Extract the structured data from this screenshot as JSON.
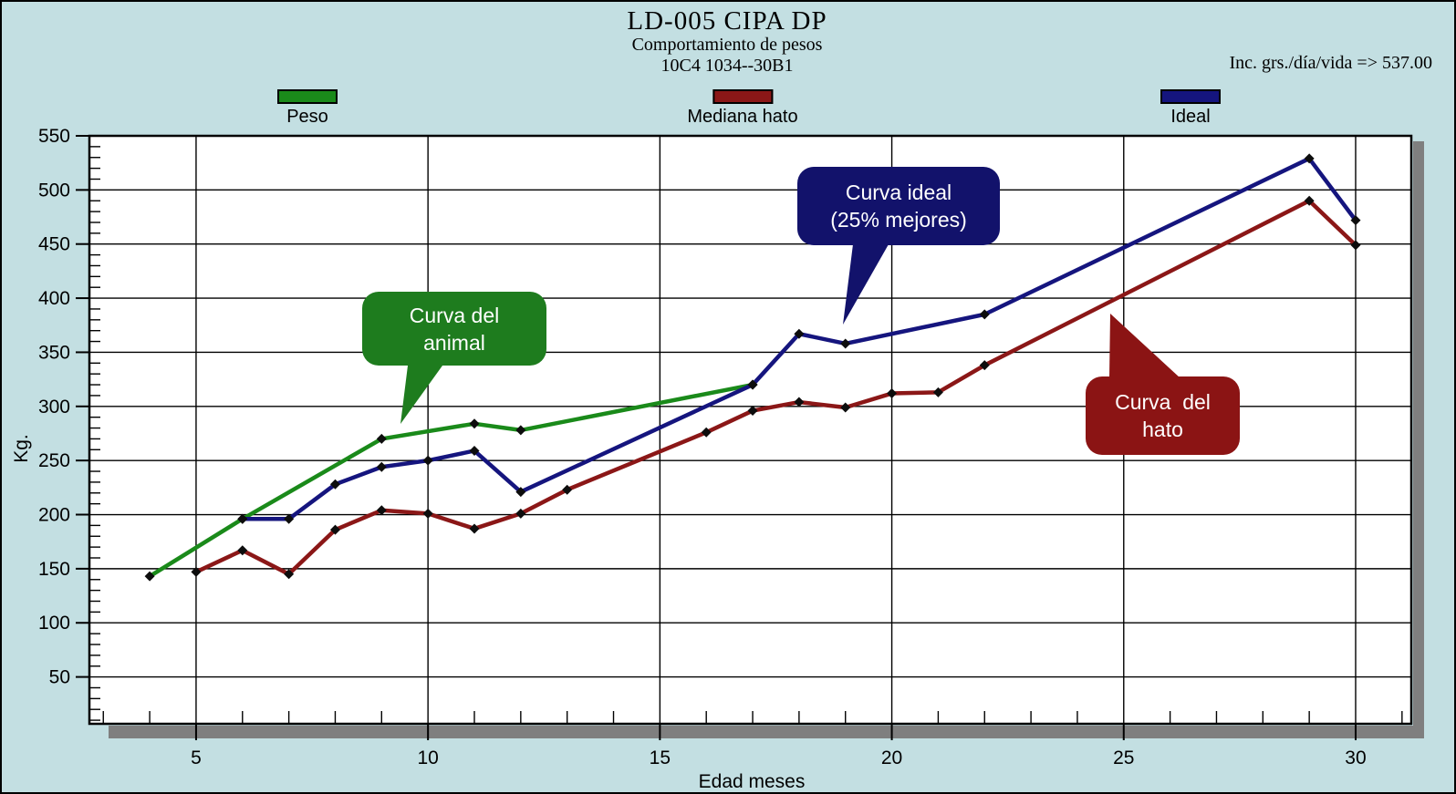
{
  "header": {
    "title": "LD-005 CIPA DP",
    "subtitle": "Comportamiento de pesos",
    "code": "10C4 1034--30B1",
    "right_note": "Inc. grs./día/vida => 537.00"
  },
  "legend": {
    "items": [
      {
        "label": "Peso",
        "color": "#1a8a1a"
      },
      {
        "label": "Mediana hato",
        "color": "#8b1717"
      },
      {
        "label": "Ideal",
        "color": "#15157e"
      }
    ]
  },
  "axes": {
    "x_label": "Edad meses",
    "y_label": "Kg.",
    "x_major_ticks": [
      5,
      10,
      15,
      20,
      25,
      30
    ],
    "y_major_ticks": [
      50,
      100,
      150,
      200,
      250,
      300,
      350,
      400,
      450,
      500,
      550
    ],
    "x_minor_step": 1,
    "y_minor_step": 10
  },
  "chart_data": {
    "type": "line",
    "title": "LD-005 CIPA DP",
    "subtitle": "Comportamiento de pesos",
    "xlabel": "Edad meses",
    "ylabel": "Kg.",
    "xlim": [
      2.7,
      31.2
    ],
    "ylim": [
      6.7,
      550
    ],
    "grid": true,
    "legend_position": "top",
    "series": [
      {
        "name": "Peso",
        "color": "#1a8a1a",
        "points": [
          [
            4,
            143
          ],
          [
            6,
            196
          ],
          [
            9,
            270
          ],
          [
            11,
            284
          ],
          [
            12,
            278
          ],
          [
            17,
            320
          ]
        ]
      },
      {
        "name": "Mediana hato",
        "color": "#8b1717",
        "points": [
          [
            5,
            147
          ],
          [
            6,
            167
          ],
          [
            7,
            145
          ],
          [
            8,
            186
          ],
          [
            9,
            204
          ],
          [
            10,
            201
          ],
          [
            11,
            187
          ],
          [
            12,
            201
          ],
          [
            13,
            223
          ],
          [
            16,
            276
          ],
          [
            17,
            296
          ],
          [
            18,
            304
          ],
          [
            19,
            299
          ],
          [
            20,
            312
          ],
          [
            21,
            313
          ],
          [
            22,
            338
          ],
          [
            29,
            490
          ],
          [
            30,
            449
          ]
        ]
      },
      {
        "name": "Ideal",
        "color": "#15157e",
        "points": [
          [
            6,
            196
          ],
          [
            7,
            196
          ],
          [
            8,
            228
          ],
          [
            9,
            244
          ],
          [
            10,
            250
          ],
          [
            11,
            259
          ],
          [
            12,
            221
          ],
          [
            17,
            320
          ],
          [
            18,
            367
          ],
          [
            19,
            358
          ],
          [
            22,
            385
          ],
          [
            29,
            529
          ],
          [
            30,
            472
          ]
        ]
      }
    ]
  },
  "callouts": [
    {
      "id": "animal",
      "lines": [
        "Curva del",
        "animal"
      ],
      "color": "#1e7c1e",
      "text_color": "#ffffff"
    },
    {
      "id": "ideal",
      "lines": [
        "Curva ideal",
        "(25% mejores)"
      ],
      "color": "#12126b",
      "text_color": "#ffffff"
    },
    {
      "id": "hato",
      "lines": [
        "Curva  del",
        "hato"
      ],
      "color": "#8b1414",
      "text_color": "#ffffff"
    }
  ]
}
